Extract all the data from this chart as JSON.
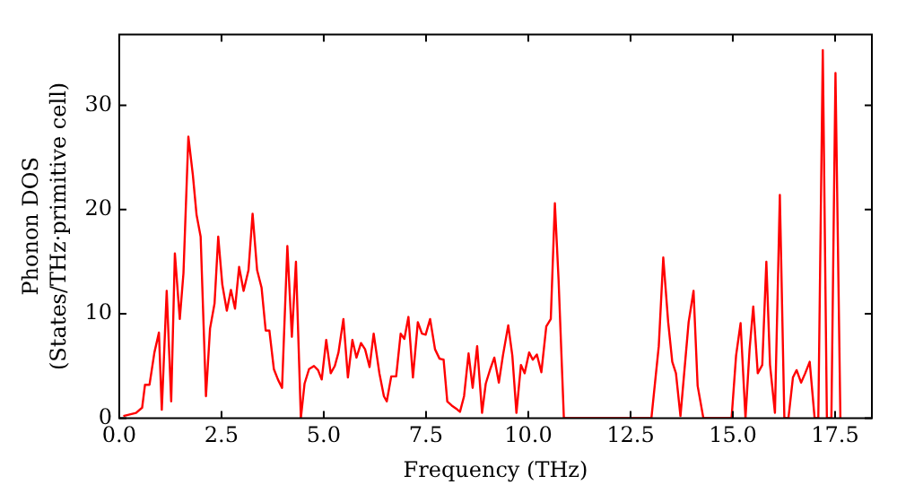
{
  "chart_data": {
    "type": "line",
    "xlabel": "Frequency (THz)",
    "ylabel": "Phonon DOS\n(States/THz·primitive cell)",
    "x": [
      0.1,
      0.41,
      0.56,
      0.63,
      0.74,
      0.86,
      0.97,
      1.04,
      1.16,
      1.27,
      1.36,
      1.48,
      1.57,
      1.69,
      1.8,
      1.89,
      1.99,
      2.12,
      2.22,
      2.33,
      2.42,
      2.52,
      2.63,
      2.73,
      2.83,
      2.93,
      3.04,
      3.16,
      3.26,
      3.37,
      3.48,
      3.58,
      3.67,
      3.78,
      3.88,
      3.98,
      4.11,
      4.22,
      4.32,
      4.44,
      4.53,
      4.64,
      4.76,
      4.86,
      4.95,
      5.06,
      5.17,
      5.27,
      5.36,
      5.48,
      5.59,
      5.7,
      5.8,
      5.91,
      6.01,
      6.12,
      6.22,
      6.36,
      6.47,
      6.54,
      6.65,
      6.77,
      6.88,
      6.97,
      7.07,
      7.18,
      7.3,
      7.4,
      7.49,
      7.6,
      7.72,
      7.83,
      7.93,
      8.02,
      8.13,
      8.24,
      8.33,
      8.43,
      8.54,
      8.64,
      8.75,
      8.87,
      8.96,
      9.07,
      9.17,
      9.28,
      9.38,
      9.51,
      9.61,
      9.71,
      9.82,
      9.91,
      10.02,
      10.11,
      10.21,
      10.32,
      10.44,
      10.55,
      10.65,
      10.74,
      10.87,
      13.01,
      13.19,
      13.3,
      13.42,
      13.52,
      13.61,
      13.72,
      13.92,
      14.04,
      14.14,
      14.28,
      14.97,
      15.08,
      15.19,
      15.31,
      15.41,
      15.5,
      15.61,
      15.72,
      15.82,
      15.91,
      16.03,
      16.15,
      16.26,
      16.36,
      16.47,
      16.56,
      16.67,
      16.77,
      16.88,
      17.0,
      17.09,
      17.2,
      17.3,
      17.41,
      17.51,
      17.63
    ],
    "series": [
      {
        "color": "#ff0000",
        "values": [
          0.2,
          0.5,
          1.0,
          3.2,
          3.2,
          6.3,
          8.2,
          0.8,
          12.2,
          1.6,
          15.8,
          9.5,
          13.9,
          27.0,
          23.3,
          19.5,
          17.4,
          2.1,
          8.6,
          11.0,
          17.4,
          12.8,
          10.3,
          12.3,
          10.5,
          14.5,
          12.2,
          14.2,
          19.6,
          14.2,
          12.5,
          8.4,
          8.4,
          4.7,
          3.7,
          2.9,
          16.5,
          7.8,
          15.0,
          0,
          3.3,
          4.7,
          5.0,
          4.6,
          3.7,
          7.5,
          4.3,
          5.0,
          6.3,
          9.5,
          3.9,
          7.5,
          5.8,
          7.2,
          6.6,
          4.9,
          8.1,
          4.3,
          2.1,
          1.6,
          4.0,
          4.0,
          8.1,
          7.6,
          9.7,
          3.9,
          9.2,
          8.1,
          8.0,
          9.5,
          6.6,
          5.7,
          5.6,
          1.6,
          1.2,
          0.9,
          0.6,
          2.1,
          6.2,
          2.9,
          6.9,
          0.5,
          3.3,
          4.7,
          5.8,
          3.4,
          6.0,
          8.9,
          6.0,
          0.5,
          5.1,
          4.3,
          6.3,
          5.6,
          6.1,
          4.4,
          8.8,
          9.5,
          20.6,
          13.3,
          0,
          0,
          6.9,
          15.4,
          9.2,
          5.4,
          4.3,
          0.2,
          9.2,
          12.2,
          3.1,
          0,
          0,
          6.0,
          9.1,
          0,
          6.6,
          10.7,
          4.3,
          5.1,
          15.0,
          5.1,
          0.5,
          21.4,
          0,
          0,
          3.9,
          4.6,
          3.4,
          4.3,
          5.4,
          0,
          0,
          35.3,
          0,
          0,
          33.1,
          0
        ]
      }
    ],
    "xlim": [
      0,
      18.4
    ],
    "ylim": [
      0,
      36.8
    ],
    "xticks": [
      {
        "value": 0,
        "label": "0.0"
      },
      {
        "value": 2.5,
        "label": "2.5"
      },
      {
        "value": 5,
        "label": "5.0"
      },
      {
        "value": 7.5,
        "label": "7.5"
      },
      {
        "value": 10,
        "label": "10.0"
      },
      {
        "value": 12.5,
        "label": "12.5"
      },
      {
        "value": 15,
        "label": "15.0"
      },
      {
        "value": 17.5,
        "label": "17.5"
      }
    ],
    "yticks": [
      0,
      10,
      20,
      30
    ],
    "marker": "none",
    "line_style": "solid",
    "legend": false,
    "grid": false
  }
}
